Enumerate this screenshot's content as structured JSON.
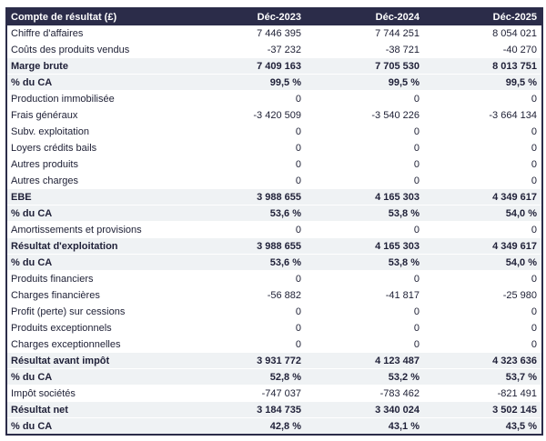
{
  "colors": {
    "header_bg": "#2b2c49",
    "header_text": "#ffffff",
    "emphasis_row_bg": "#eff2f4",
    "body_text": "#202237",
    "outer_border": "#2b2c49"
  },
  "table": {
    "header": {
      "label": "Compte de résultat (£)",
      "columns": [
        "Déc-2023",
        "Déc-2024",
        "Déc-2025"
      ]
    },
    "rows": [
      {
        "label": "Chiffre d'affaires",
        "values": [
          "7 446 395",
          "7 744 251",
          "8 054 021"
        ],
        "emphasis": false
      },
      {
        "label": "Coûts des produits vendus",
        "values": [
          "-37 232",
          "-38 721",
          "-40 270"
        ],
        "emphasis": false
      },
      {
        "label": "Marge brute",
        "values": [
          "7 409 163",
          "7 705 530",
          "8 013 751"
        ],
        "emphasis": true
      },
      {
        "label": "% du CA",
        "values": [
          "99,5 %",
          "99,5 %",
          "99,5 %"
        ],
        "emphasis": true
      },
      {
        "label": "Production immobilisée",
        "values": [
          "0",
          "0",
          "0"
        ],
        "emphasis": false
      },
      {
        "label": "Frais généraux",
        "values": [
          "-3 420 509",
          "-3 540 226",
          "-3 664 134"
        ],
        "emphasis": false
      },
      {
        "label": "Subv. exploitation",
        "values": [
          "0",
          "0",
          "0"
        ],
        "emphasis": false
      },
      {
        "label": "Loyers crédits bails",
        "values": [
          "0",
          "0",
          "0"
        ],
        "emphasis": false
      },
      {
        "label": "Autres produits",
        "values": [
          "0",
          "0",
          "0"
        ],
        "emphasis": false
      },
      {
        "label": "Autres charges",
        "values": [
          "0",
          "0",
          "0"
        ],
        "emphasis": false
      },
      {
        "label": "EBE",
        "values": [
          "3 988 655",
          "4 165 303",
          "4 349 617"
        ],
        "emphasis": true
      },
      {
        "label": "% du CA",
        "values": [
          "53,6 %",
          "53,8 %",
          "54,0 %"
        ],
        "emphasis": true
      },
      {
        "label": "Amortissements et provisions",
        "values": [
          "0",
          "0",
          "0"
        ],
        "emphasis": false
      },
      {
        "label": "Résultat d'exploitation",
        "values": [
          "3 988 655",
          "4 165 303",
          "4 349 617"
        ],
        "emphasis": true
      },
      {
        "label": "% du CA",
        "values": [
          "53,6 %",
          "53,8 %",
          "54,0 %"
        ],
        "emphasis": true
      },
      {
        "label": "Produits financiers",
        "values": [
          "0",
          "0",
          "0"
        ],
        "emphasis": false
      },
      {
        "label": "Charges financières",
        "values": [
          "-56 882",
          "-41 817",
          "-25 980"
        ],
        "emphasis": false
      },
      {
        "label": "Profit (perte) sur cessions",
        "values": [
          "0",
          "0",
          "0"
        ],
        "emphasis": false
      },
      {
        "label": "Produits exceptionnels",
        "values": [
          "0",
          "0",
          "0"
        ],
        "emphasis": false
      },
      {
        "label": "Charges exceptionnelles",
        "values": [
          "0",
          "0",
          "0"
        ],
        "emphasis": false
      },
      {
        "label": "Résultat avant impôt",
        "values": [
          "3 931 772",
          "4 123 487",
          "4 323 636"
        ],
        "emphasis": true
      },
      {
        "label": "% du CA",
        "values": [
          "52,8 %",
          "53,2 %",
          "53,7 %"
        ],
        "emphasis": true
      },
      {
        "label": "Impôt sociétés",
        "values": [
          "-747 037",
          "-783 462",
          "-821 491"
        ],
        "emphasis": false
      },
      {
        "label": "Résultat net",
        "values": [
          "3 184 735",
          "3 340 024",
          "3 502 145"
        ],
        "emphasis": true
      },
      {
        "label": "% du CA",
        "values": [
          "42,8 %",
          "43,1 %",
          "43,5 %"
        ],
        "emphasis": true
      }
    ]
  }
}
